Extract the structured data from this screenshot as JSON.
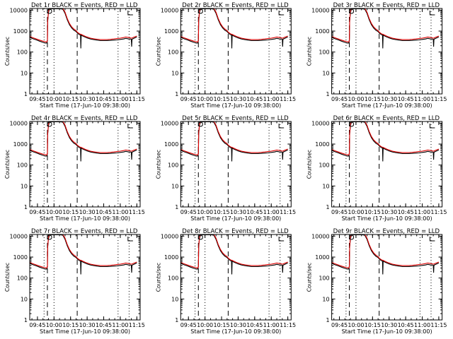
{
  "colors": {
    "events": "#000000",
    "lld": "#dd0000",
    "axes": "#000000",
    "background": "#ffffff"
  },
  "chart_data": [
    {
      "type": "line",
      "title": "Det 1r BLACK = Events, RED = LLD"
    },
    {
      "type": "line",
      "title": "Det 2r BLACK = Events, RED = LLD"
    },
    {
      "type": "line",
      "title": "Det 3r BLACK = Events, RED = LLD"
    },
    {
      "type": "line",
      "title": "Det 4r BLACK = Events, RED = LLD"
    },
    {
      "type": "line",
      "title": "Det 5r BLACK = Events, RED = LLD"
    },
    {
      "type": "line",
      "title": "Det 6r BLACK = Events, RED = LLD"
    },
    {
      "type": "line",
      "title": "Det 7r BLACK = Events, RED = LLD"
    },
    {
      "type": "line",
      "title": "Det 8r BLACK = Events, RED = LLD"
    },
    {
      "type": "line",
      "title": "Det 9r BLACK = Events, RED = LLD"
    }
  ],
  "shared": {
    "xlabel": "Start Time (17-Jun-10 09:38:00)",
    "ylabel": "Counts/sec",
    "x_unit": "minutes since 09:38",
    "xlim": [
      0,
      100
    ],
    "ylim": [
      1,
      12000
    ],
    "yscale": "log",
    "x_ticks": [
      {
        "label": "09:45",
        "value": 7
      },
      {
        "label": "10:00",
        "value": 22
      },
      {
        "label": "10:15",
        "value": 37
      },
      {
        "label": "10:30",
        "value": 52
      },
      {
        "label": "10:45",
        "value": 67
      },
      {
        "label": "11:00",
        "value": 82
      },
      {
        "label": "11:15",
        "value": 97
      }
    ],
    "y_ticks": [
      {
        "label": "1",
        "value": 1
      },
      {
        "label": "10",
        "value": 10
      },
      {
        "label": "100",
        "value": 100
      },
      {
        "label": "1000",
        "value": 1000
      },
      {
        "label": "10000",
        "value": 10000
      }
    ],
    "dotted_lines": [
      13,
      22,
      80,
      90
    ],
    "dashed_lines": [
      16,
      43
    ],
    "markers": {
      "circle": {
        "x": 18,
        "y": 12000
      },
      "bracket": {
        "x": 89,
        "y": 10000
      }
    },
    "series": [
      {
        "name": "Events",
        "color_key": "events",
        "x": [
          0,
          3,
          6,
          9,
          12,
          14,
          15.5,
          16,
          16.3,
          17,
          18,
          20,
          22,
          24,
          26,
          28,
          30,
          32,
          34,
          36,
          38,
          40,
          42,
          43.2,
          44.5,
          46,
          46.3,
          46.6,
          47,
          48,
          50,
          52,
          55,
          58,
          61,
          64,
          67,
          70,
          73,
          76,
          79,
          82,
          85,
          87,
          89,
          91,
          92,
          92.3,
          92.6,
          93,
          95,
          97
        ],
        "y": [
          500,
          430,
          380,
          330,
          290,
          270,
          270,
          350,
          3000,
          8000,
          11000,
          11500,
          11500,
          11500,
          11500,
          11500,
          11000,
          7000,
          3500,
          2000,
          1400,
          1100,
          950,
          800,
          700,
          640,
          150,
          640,
          620,
          580,
          520,
          470,
          420,
          390,
          370,
          350,
          350,
          355,
          360,
          370,
          380,
          400,
          420,
          450,
          430,
          420,
          400,
          180,
          400,
          420,
          470,
          520
        ]
      },
      {
        "name": "LLD",
        "color_key": "lld",
        "x": [
          0,
          3,
          6,
          9,
          12,
          14,
          15.5,
          16,
          16.3,
          17,
          18,
          20,
          22,
          24,
          26,
          28,
          30,
          32,
          34,
          36,
          38,
          40,
          42,
          43.2,
          44.5,
          46,
          46.3,
          46.6,
          47,
          48,
          50,
          52,
          55,
          58,
          61,
          64,
          67,
          70,
          73,
          76,
          79,
          82,
          85,
          87,
          89,
          91,
          92,
          92.3,
          92.6,
          93,
          95,
          97
        ],
        "y": [
          560,
          480,
          420,
          370,
          330,
          310,
          300,
          380,
          3200,
          9000,
          12000,
          12000,
          12000,
          12000,
          12000,
          12000,
          12000,
          8000,
          4000,
          2300,
          1600,
          1250,
          1050,
          880,
          780,
          700,
          700,
          700,
          680,
          640,
          570,
          520,
          460,
          430,
          410,
          390,
          390,
          395,
          405,
          420,
          440,
          460,
          490,
          520,
          500,
          480,
          460,
          460,
          460,
          480,
          530,
          580
        ]
      }
    ]
  }
}
